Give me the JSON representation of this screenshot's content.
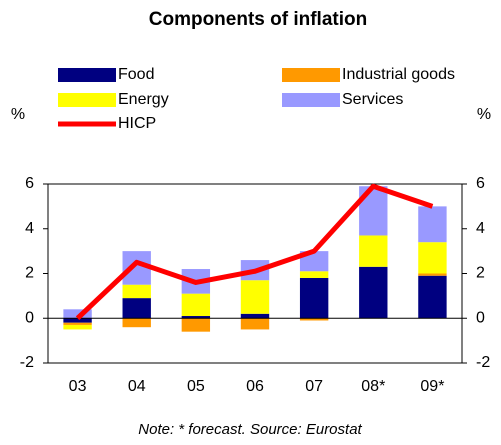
{
  "chart_data": {
    "type": "bar",
    "stacked": true,
    "title": "Components of inflation",
    "y_label": "%",
    "y2_label": "%",
    "note": "Note: * forecast. Source: Eurostat",
    "categories": [
      "03",
      "04",
      "05",
      "06",
      "07",
      "08*",
      "09*"
    ],
    "series": [
      {
        "name": "Food",
        "color": "#000080",
        "values": [
          -0.2,
          0.9,
          0.1,
          0.2,
          1.8,
          2.3,
          1.9
        ]
      },
      {
        "name": "Industrial goods",
        "color": "#ff9900",
        "values": [
          -0.1,
          -0.4,
          -0.6,
          -0.5,
          -0.1,
          0,
          0.1
        ]
      },
      {
        "name": "Energy",
        "color": "#ffff00",
        "values": [
          -0.2,
          0.6,
          1.0,
          1.5,
          0.3,
          1.4,
          1.4
        ]
      },
      {
        "name": "Services",
        "color": "#9999ff",
        "values": [
          0.4,
          1.5,
          1.1,
          0.9,
          0.9,
          2.2,
          1.6
        ]
      },
      {
        "name": "HICP",
        "type": "line",
        "color": "#ff0000",
        "values": [
          0.0,
          2.5,
          1.6,
          2.1,
          3.0,
          5.9,
          5.0
        ]
      }
    ],
    "ylim": [
      -2,
      6
    ],
    "yticks": [
      -2,
      0,
      2,
      4,
      6
    ],
    "y2lim": [
      -2,
      6
    ],
    "y2ticks": [
      -2,
      0,
      2,
      4,
      6
    ]
  }
}
